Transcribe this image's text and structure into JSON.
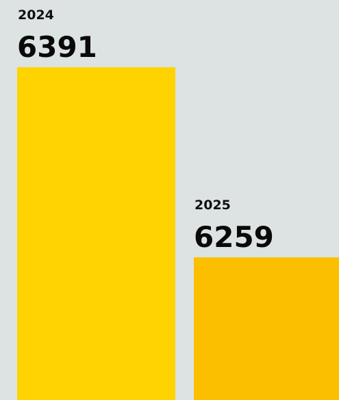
{
  "chart_data": {
    "type": "bar",
    "categories": [
      "2024",
      "2025"
    ],
    "values": [
      6391,
      6259
    ],
    "data_labels": [
      "6391",
      "6259"
    ],
    "colors": [
      "#fed300",
      "#fcbf00"
    ],
    "title": "",
    "xlabel": "",
    "ylabel": "",
    "grid": false,
    "legend": "none"
  }
}
